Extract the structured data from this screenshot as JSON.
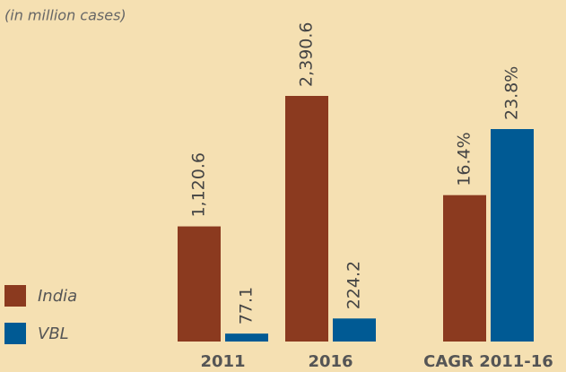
{
  "chart_data": [
    {
      "type": "bar",
      "subtitle": "(in million cases)",
      "categories": [
        "2011",
        "2016"
      ],
      "series": [
        {
          "name": "India",
          "color": "#8b3a1f",
          "values": [
            1120.6,
            2390.6
          ],
          "value_labels": [
            "1,120.6",
            "2,390.6"
          ]
        },
        {
          "name": "VBL",
          "color": "#005a94",
          "values": [
            77.1,
            224.2
          ],
          "value_labels": [
            "77.1",
            "224.2"
          ]
        }
      ]
    },
    {
      "type": "bar",
      "categories": [
        "CAGR 2011-16"
      ],
      "series": [
        {
          "color": "#8b3a1f",
          "values": [
            16.4
          ],
          "value_labels": [
            "16.4%"
          ]
        },
        {
          "color": "#005a94",
          "values": [
            23.8
          ],
          "value_labels": [
            "23.8%"
          ]
        }
      ]
    }
  ]
}
